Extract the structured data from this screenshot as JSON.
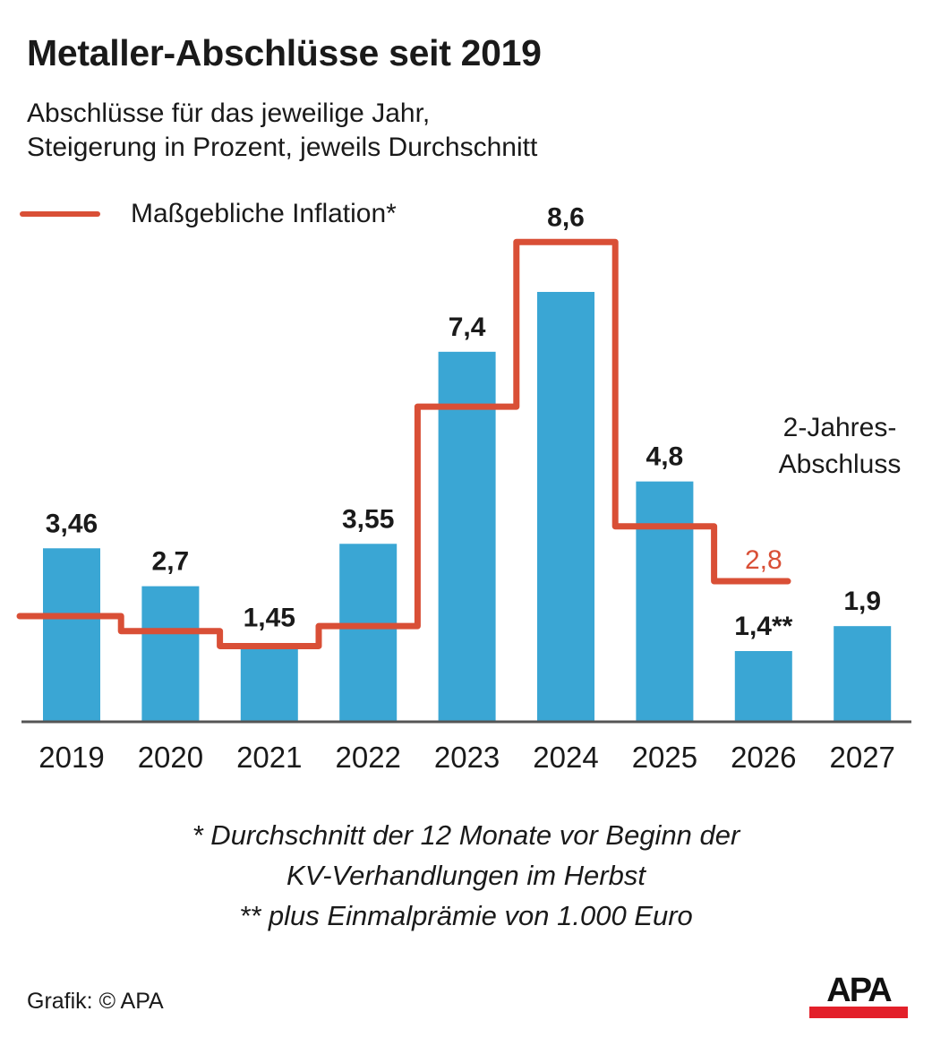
{
  "header": {
    "title": "Metaller-Abschlüsse seit 2019",
    "subtitle_line1": "Abschlüsse für das jeweilige Jahr,",
    "subtitle_line2": "Steigerung in Prozent, jeweils Durchschnitt"
  },
  "legend": {
    "line_label": "Maßgebliche Inflation*"
  },
  "colors": {
    "bar": "#3aa6d4",
    "inflation_line": "#d94f36",
    "axis": "#555555",
    "logo_red": "#e3202a"
  },
  "chart_data": {
    "type": "bar",
    "title": "Metaller-Abschlüsse seit 2019",
    "subtitle": "Abschlüsse für das jeweilige Jahr, Steigerung in Prozent, jeweils Durchschnitt",
    "xlabel": "",
    "ylabel": "",
    "ylim": [
      0,
      10
    ],
    "grid": false,
    "legend_position": "top-left",
    "categories": [
      "2019",
      "2020",
      "2021",
      "2022",
      "2023",
      "2024",
      "2025",
      "2026",
      "2027"
    ],
    "series": [
      {
        "name": "Abschluss",
        "type": "bar",
        "values": [
          3.46,
          2.7,
          1.45,
          3.55,
          7.4,
          8.6,
          4.8,
          1.4,
          1.9
        ],
        "labels": [
          "3,46",
          "2,7",
          "1,45",
          "3,55",
          "7,4",
          "8,6",
          "4,8",
          "1,4**",
          "1,9"
        ]
      },
      {
        "name": "Maßgebliche Inflation*",
        "type": "step-line",
        "values": [
          2.1,
          1.8,
          1.5,
          1.9,
          6.3,
          9.6,
          3.9,
          2.8,
          null
        ],
        "labels": [
          null,
          null,
          null,
          null,
          null,
          null,
          null,
          "2,8",
          null
        ]
      }
    ],
    "annotations": [
      {
        "text_line1": "2-Jahres-",
        "text_line2": "Abschluss",
        "applies_to": [
          "2026",
          "2027"
        ]
      }
    ]
  },
  "footnotes": {
    "line1": "* Durchschnitt der 12 Monate vor Beginn der",
    "line2": "KV-Verhandlungen im Herbst",
    "line3": "** plus Einmalprämie von 1.000 Euro"
  },
  "footer": {
    "credit": "Grafik: © APA",
    "logo_text": "APA"
  }
}
